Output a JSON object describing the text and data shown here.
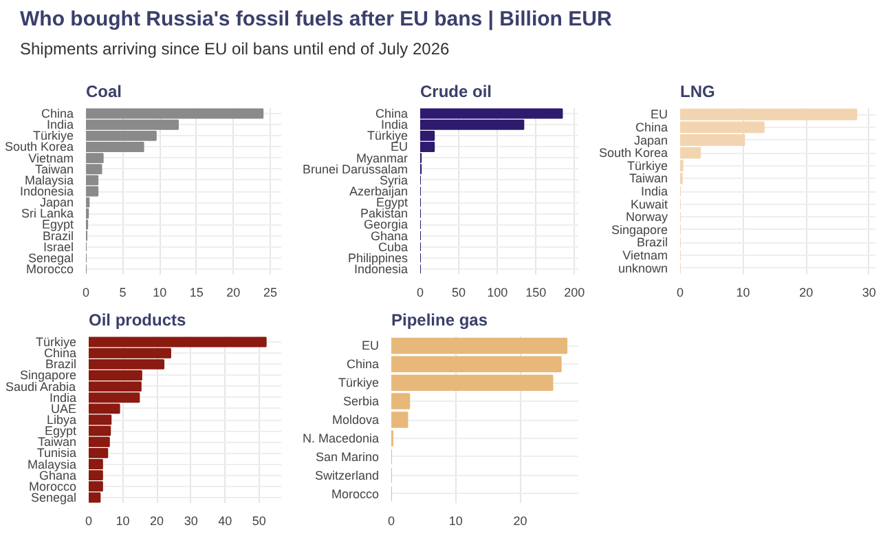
{
  "chart_data": [
    {
      "type": "other",
      "title": "Who bought Russia's fossil fuels after EU bans | Billion EUR",
      "subtitle": "Shipments arriving since EU oil bans until end of July 2026"
    },
    {
      "type": "bar",
      "orientation": "horizontal",
      "title": "Coal",
      "categories": [
        "China",
        "India",
        "Türkiye",
        "South Korea",
        "Vietnam",
        "Taiwan",
        "Malaysia",
        "Indonesia",
        "Japan",
        "Sri Lanka",
        "Egypt",
        "Brazil",
        "Israel",
        "Senegal",
        "Morocco"
      ],
      "values": [
        24,
        12.5,
        9.5,
        7.8,
        2.3,
        2.1,
        1.6,
        1.6,
        0.4,
        0.3,
        0.2,
        0.1,
        0,
        0,
        0
      ],
      "color": "#8a8a8a",
      "xlim": [
        0,
        26.5
      ],
      "xticks": [
        0,
        5,
        10,
        15,
        20,
        25
      ],
      "grid": true
    },
    {
      "type": "bar",
      "orientation": "horizontal",
      "title": "Crude oil",
      "categories": [
        "China",
        "India",
        "Türkiye",
        "EU",
        "Myanmar",
        "Brunei Darussalam",
        "Syria",
        "Azerbaijan",
        "Egypt",
        "Pakistan",
        "Georgia",
        "Ghana",
        "Cuba",
        "Philippines",
        "Indonesia"
      ],
      "values": [
        184,
        134,
        18,
        18,
        1,
        1,
        0,
        0,
        0,
        0,
        0,
        0,
        0,
        0,
        0
      ],
      "color": "#2e1a6e",
      "xlim": [
        0,
        205
      ],
      "xticks": [
        0,
        50,
        100,
        150,
        200
      ],
      "grid": true
    },
    {
      "type": "bar",
      "orientation": "horizontal",
      "title": "LNG",
      "categories": [
        "EU",
        "China",
        "Japan",
        "South Korea",
        "Türkiye",
        "Taiwan",
        "India",
        "Kuwait",
        "Norway",
        "Singapore",
        "Brazil",
        "Vietnam",
        "unknown"
      ],
      "values": [
        28,
        13.3,
        10.2,
        3.2,
        0.4,
        0.3,
        0,
        0,
        0,
        0,
        0,
        0,
        0
      ],
      "color": "#f2d5b0",
      "xlim": [
        0,
        31
      ],
      "xticks": [
        0,
        10,
        20,
        30
      ],
      "grid": true
    },
    {
      "type": "bar",
      "orientation": "horizontal",
      "title": "Oil products",
      "categories": [
        "Türkiye",
        "China",
        "Brazil",
        "Singapore",
        "Saudi Arabia",
        "India",
        "UAE",
        "Libya",
        "Egypt",
        "Taiwan",
        "Tunisia",
        "Malaysia",
        "Ghana",
        "Morocco",
        "Senegal"
      ],
      "values": [
        52,
        24,
        22,
        15.5,
        15.3,
        14.8,
        9,
        6.5,
        6.3,
        6,
        5.5,
        4,
        4,
        4,
        3.3
      ],
      "color": "#8b1a10",
      "xlim": [
        0,
        56.5
      ],
      "xticks": [
        0,
        10,
        20,
        30,
        40,
        50
      ],
      "grid": true
    },
    {
      "type": "bar",
      "orientation": "horizontal",
      "title": "Pipeline gas",
      "categories": [
        "EU",
        "China",
        "Türkiye",
        "Serbia",
        "Moldova",
        "N. Macedonia",
        "San Marino",
        "Switzerland",
        "Morocco"
      ],
      "values": [
        27.2,
        26.3,
        25,
        2.8,
        2.5,
        0.2,
        0,
        0,
        0
      ],
      "color": "#e8b87a",
      "xlim": [
        0,
        29
      ],
      "xticks": [
        0,
        10,
        20
      ],
      "grid": true
    }
  ]
}
